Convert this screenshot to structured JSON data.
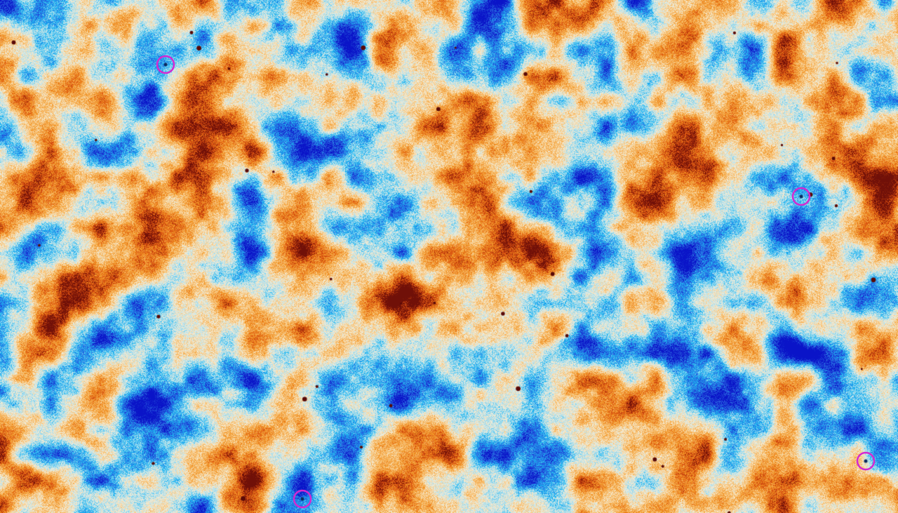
{
  "colormap": {
    "stops": [
      "#0a14c8",
      "#2a62e0",
      "#18b4f0",
      "#aee0f0",
      "#f6ecd4",
      "#f8c070",
      "#f09020",
      "#d84c10",
      "#701008"
    ]
  },
  "marker": {
    "color": "#d428d0",
    "shape": "circle"
  },
  "point_source_color": "#5a0a08"
}
